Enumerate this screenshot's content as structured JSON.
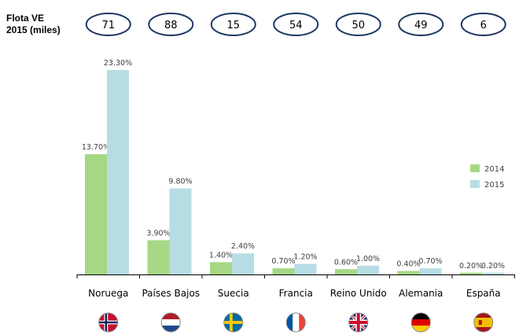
{
  "fleet": {
    "label_line1": "Flota VE",
    "label_line2": "2015 (miles)",
    "values": [
      "71",
      "88",
      "15",
      "54",
      "50",
      "49",
      "6"
    ]
  },
  "chart_data": {
    "type": "bar",
    "categories": [
      "Noruega",
      "Países Bajos",
      "Suecia",
      "Francia",
      "Reino Unido",
      "Alemania",
      "España"
    ],
    "series": [
      {
        "name": "2014",
        "values": [
          13.7,
          3.9,
          1.4,
          0.7,
          0.6,
          0.4,
          0.2
        ],
        "labels": [
          "13.70%",
          "3.90%",
          "1.40%",
          "0.70%",
          "0.60%",
          "0.40%",
          "0.20%"
        ]
      },
      {
        "name": "2015",
        "values": [
          23.3,
          9.8,
          2.4,
          1.2,
          1.0,
          0.7,
          0.2
        ],
        "labels": [
          "23.30%",
          "9.80%",
          "2.40%",
          "1.20%",
          "1.00%",
          "0.70%",
          "0.20%"
        ]
      }
    ],
    "ylim": [
      0,
      23.3
    ],
    "legend_position": "right",
    "grid": false,
    "flags": [
      "norway-flag-icon",
      "netherlands-flag-icon",
      "sweden-flag-icon",
      "france-flag-icon",
      "united-kingdom-flag-icon",
      "germany-flag-icon",
      "spain-flag-icon"
    ]
  },
  "colors": {
    "series_2014": "#a6d785",
    "series_2015": "#b7dde4",
    "oval_stroke": "#1f3864",
    "axis": "#000000",
    "label_text": "#404040"
  }
}
